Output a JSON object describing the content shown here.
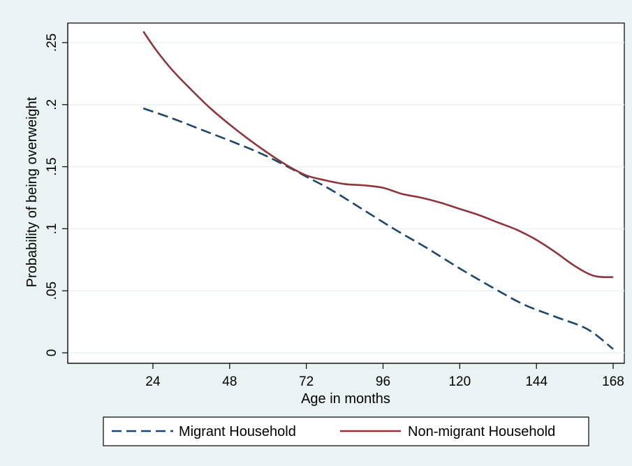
{
  "chart_data": {
    "type": "line",
    "xlabel": "Age in months",
    "ylabel": "Probability of being overweight",
    "xlim": [
      0,
      168
    ],
    "ylim": [
      0,
      0.25
    ],
    "x_ticks": [
      {
        "value": 24,
        "label": "24"
      },
      {
        "value": 48,
        "label": "48"
      },
      {
        "value": 72,
        "label": "72"
      },
      {
        "value": 96,
        "label": "96"
      },
      {
        "value": 120,
        "label": "120"
      },
      {
        "value": 144,
        "label": "144"
      },
      {
        "value": 168,
        "label": "168"
      }
    ],
    "y_ticks": [
      {
        "value": 0,
        "label": "0"
      },
      {
        "value": 0.05,
        "label": ".05"
      },
      {
        "value": 0.1,
        "label": ".1"
      },
      {
        "value": 0.15,
        "label": ".15"
      },
      {
        "value": 0.2,
        "label": ".2"
      },
      {
        "value": 0.25,
        "label": ".25"
      }
    ],
    "grid": true,
    "legend_position": "bottom",
    "series": [
      {
        "name": "Migrant Household",
        "color": "#1a476f",
        "dash": "long-dash",
        "x": [
          21,
          30,
          40,
          50,
          60,
          72,
          80,
          90,
          100,
          110,
          120,
          130,
          140,
          150,
          160,
          168
        ],
        "y": [
          0.197,
          0.189,
          0.179,
          0.169,
          0.158,
          0.142,
          0.131,
          0.115,
          0.099,
          0.084,
          0.068,
          0.053,
          0.039,
          0.029,
          0.019,
          0.003
        ]
      },
      {
        "name": "Non-migrant Household",
        "color": "#90353b",
        "dash": "solid",
        "x": [
          21,
          25,
          30,
          36,
          42,
          48,
          54,
          60,
          66,
          72,
          78,
          84,
          90,
          96,
          102,
          108,
          114,
          120,
          126,
          132,
          138,
          144,
          150,
          156,
          162,
          168
        ],
        "y": [
          0.259,
          0.244,
          0.228,
          0.212,
          0.197,
          0.184,
          0.172,
          0.161,
          0.151,
          0.143,
          0.139,
          0.136,
          0.135,
          0.133,
          0.128,
          0.125,
          0.121,
          0.116,
          0.111,
          0.105,
          0.099,
          0.091,
          0.081,
          0.07,
          0.062,
          0.061
        ]
      }
    ]
  }
}
